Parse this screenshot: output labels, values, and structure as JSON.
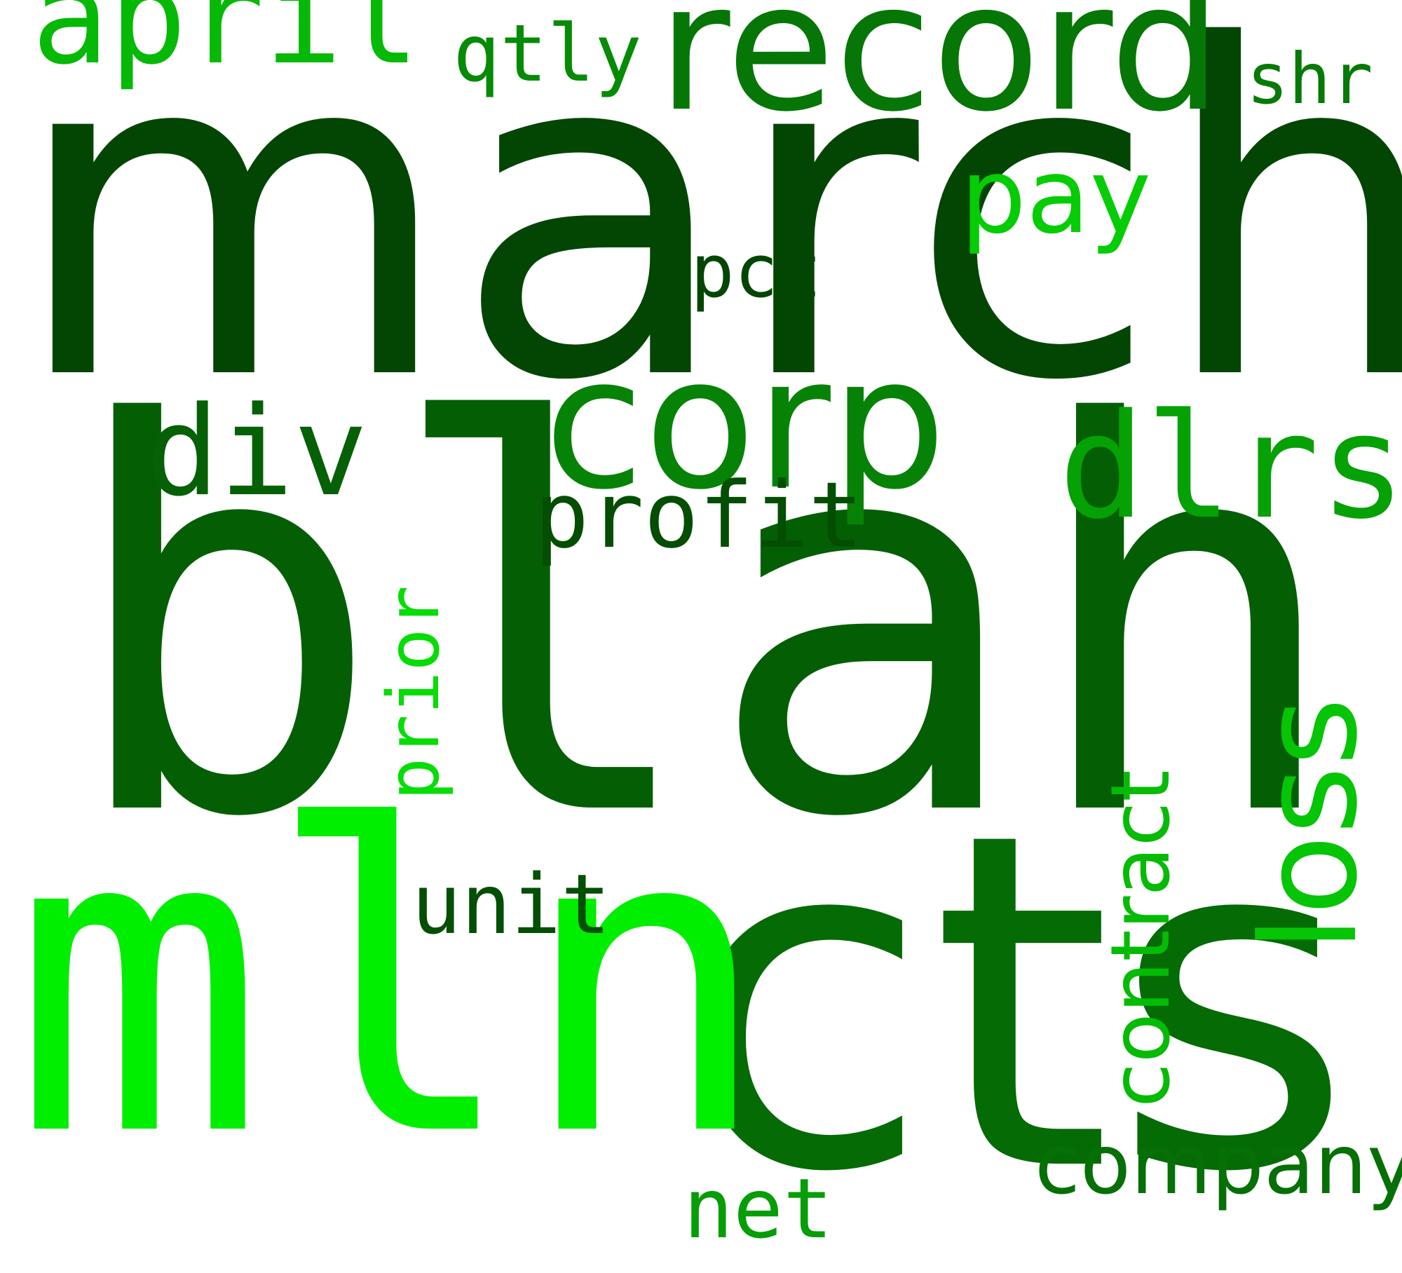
{
  "word_cloud": {
    "words": [
      {
        "id": "march",
        "text": "march",
        "color": "#034603",
        "orientation": "horizontal"
      },
      {
        "id": "blah",
        "text": "blah",
        "color": "#045f04",
        "orientation": "horizontal"
      },
      {
        "id": "cts",
        "text": "cts",
        "color": "#056b05",
        "orientation": "horizontal"
      },
      {
        "id": "mln",
        "text": "mln",
        "color": "#00ee00",
        "orientation": "horizontal"
      },
      {
        "id": "record",
        "text": "record",
        "color": "#067606",
        "orientation": "horizontal"
      },
      {
        "id": "corp",
        "text": "corp",
        "color": "#068306",
        "orientation": "horizontal"
      },
      {
        "id": "dlrs",
        "text": "dlrs",
        "color": "#05a105",
        "orientation": "horizontal"
      },
      {
        "id": "loss",
        "text": "loss",
        "color": "#06c406",
        "orientation": "vertical"
      },
      {
        "id": "contract",
        "text": "contract",
        "color": "#05bb05",
        "orientation": "vertical"
      },
      {
        "id": "april",
        "text": "april",
        "color": "#06b906",
        "orientation": "horizontal"
      },
      {
        "id": "div",
        "text": "div",
        "color": "#066006",
        "orientation": "horizontal"
      },
      {
        "id": "pay",
        "text": "pay",
        "color": "#06cc06",
        "orientation": "horizontal"
      },
      {
        "id": "prior",
        "text": "prior",
        "color": "#06dd06",
        "orientation": "vertical"
      },
      {
        "id": "profit",
        "text": "profit",
        "color": "#034e03",
        "orientation": "horizontal"
      },
      {
        "id": "company",
        "text": "company",
        "color": "#067006",
        "orientation": "horizontal"
      },
      {
        "id": "unit",
        "text": "unit",
        "color": "#034f03",
        "orientation": "horizontal"
      },
      {
        "id": "qtly",
        "text": "qtly",
        "color": "#068b06",
        "orientation": "horizontal"
      },
      {
        "id": "shr",
        "text": "shr",
        "color": "#067a06",
        "orientation": "horizontal"
      },
      {
        "id": "pct",
        "text": "pct",
        "color": "#034603",
        "orientation": "horizontal"
      },
      {
        "id": "net",
        "text": "net",
        "color": "#069e06",
        "orientation": "horizontal"
      }
    ]
  }
}
